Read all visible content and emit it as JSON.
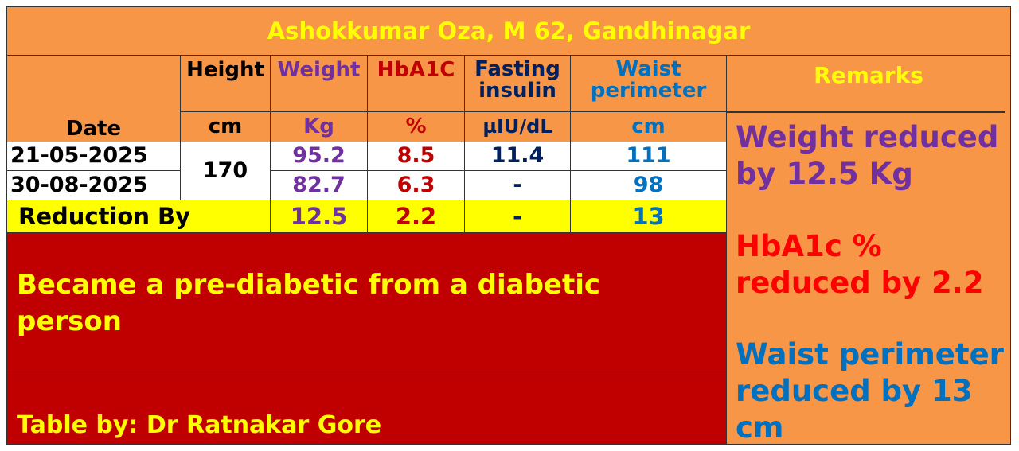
{
  "title": "Ashokkumar Oza, M 62, Gandhinagar",
  "headers": {
    "date": "Date",
    "height": "Height",
    "weight": "Weight",
    "hba1c": "HbA1C",
    "fasting_insulin": "Fasting insulin",
    "waist": "Waist perimeter",
    "remarks": "Remarks"
  },
  "units": {
    "height": "cm",
    "weight": "Kg",
    "hba1c": "%",
    "fasting_insulin": "µIU/dL",
    "waist": "cm"
  },
  "rows": [
    {
      "date": "21-05-2025",
      "weight": "95.2",
      "hba1c": "8.5",
      "fasting_insulin": "11.4",
      "waist": "111"
    },
    {
      "date": "30-08-2025",
      "weight": "82.7",
      "hba1c": "6.3",
      "fasting_insulin": "-",
      "waist": "98"
    }
  ],
  "height_value": "170",
  "reduction": {
    "label": "Reduction By",
    "weight": "12.5",
    "hba1c": "2.2",
    "fasting_insulin": "-",
    "waist": "13"
  },
  "summary": "Became a pre-diabetic from a diabetic person",
  "credit": "Table by: Dr Ratnakar Gore",
  "remarks": [
    "Weight reduced by 12.5 Kg",
    "HbA1c % reduced by 2.2",
    "Waist perimeter reduced by 13 cm"
  ],
  "colors": {
    "orange": "#F79646",
    "yellow": "#FFFF00",
    "dark_red": "#C00000",
    "weight": "#7030A0",
    "hba1c": "#C00000",
    "insulin": "#002060",
    "waist": "#0070C0"
  }
}
